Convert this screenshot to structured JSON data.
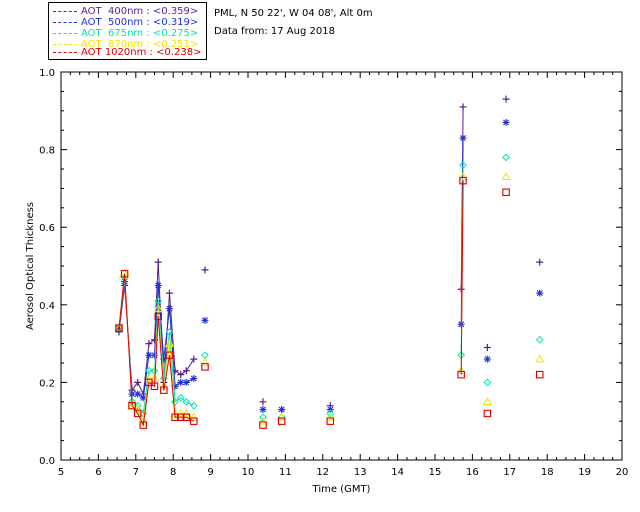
{
  "header": {
    "site": "PML, N 50 22', W 04 08', Alt 0m",
    "date": "Data from: 17 Aug 2018"
  },
  "legend": [
    {
      "label": "AOT  400nm : <0.359>",
      "color": "#5a1e8c"
    },
    {
      "label": "AOT  500nm : <0.319>",
      "color": "#1e32dc"
    },
    {
      "label": "AOT  675nm : <0.275>",
      "color": "#00e6b4"
    },
    {
      "label": "AOT  870nm : <0.251>",
      "color": "#f0e600"
    },
    {
      "label": "AOT 1020nm : <0.238>",
      "color": "#dc0000"
    }
  ],
  "chart_data": {
    "type": "line",
    "xlabel": "Time (GMT)",
    "ylabel": "Aerosol Optical Thickness",
    "xlim": [
      5,
      20
    ],
    "ylim": [
      0.0,
      1.0
    ],
    "xticks": [
      "5",
      "6",
      "7",
      "8",
      "9",
      "10",
      "11",
      "12",
      "13",
      "14",
      "15",
      "16",
      "17",
      "18",
      "19",
      "20"
    ],
    "yticks": [
      "0.0",
      "0.2",
      "0.4",
      "0.6",
      "0.8",
      "1.0"
    ],
    "series": [
      {
        "name": "AOT  400nm : <0.359>",
        "color": "#5a1e8c",
        "marker": "plus",
        "connected": [
          [
            6.55,
            0.33
          ],
          [
            6.7,
            0.45
          ],
          [
            6.9,
            0.18
          ],
          [
            7.05,
            0.2
          ],
          [
            7.2,
            0.17
          ],
          [
            7.35,
            0.3
          ],
          [
            7.5,
            0.31
          ],
          [
            7.6,
            0.51
          ],
          [
            7.75,
            0.2
          ],
          [
            7.9,
            0.43
          ],
          [
            8.05,
            0.23
          ],
          [
            8.2,
            0.22
          ],
          [
            8.35,
            0.23
          ],
          [
            8.55,
            0.26
          ]
        ],
        "isolated": [
          [
            8.85,
            0.49
          ],
          [
            10.4,
            0.15
          ],
          [
            10.9,
            0.13
          ],
          [
            12.2,
            0.14
          ],
          [
            15.7,
            0.44
          ],
          [
            15.75,
            0.91
          ],
          [
            16.4,
            0.29
          ],
          [
            16.9,
            0.93
          ],
          [
            17.8,
            0.51
          ]
        ],
        "connected_late": [
          [
            15.7,
            0.44
          ],
          [
            15.75,
            0.91
          ]
        ]
      },
      {
        "name": "AOT  500nm : <0.319>",
        "color": "#1e32dc",
        "marker": "star",
        "connected": [
          [
            6.55,
            0.34
          ],
          [
            6.7,
            0.46
          ],
          [
            6.9,
            0.17
          ],
          [
            7.05,
            0.17
          ],
          [
            7.2,
            0.16
          ],
          [
            7.35,
            0.27
          ],
          [
            7.5,
            0.27
          ],
          [
            7.6,
            0.45
          ],
          [
            7.75,
            0.26
          ],
          [
            7.9,
            0.39
          ],
          [
            8.05,
            0.19
          ],
          [
            8.2,
            0.2
          ],
          [
            8.35,
            0.2
          ],
          [
            8.55,
            0.21
          ]
        ],
        "isolated": [
          [
            8.85,
            0.36
          ],
          [
            10.4,
            0.13
          ],
          [
            10.9,
            0.13
          ],
          [
            12.2,
            0.13
          ],
          [
            15.7,
            0.35
          ],
          [
            15.75,
            0.83
          ],
          [
            16.4,
            0.26
          ],
          [
            16.9,
            0.87
          ],
          [
            17.8,
            0.43
          ]
        ],
        "connected_late": [
          [
            15.7,
            0.35
          ],
          [
            15.75,
            0.83
          ]
        ]
      },
      {
        "name": "AOT  675nm : <0.275>",
        "color": "#00e6b4",
        "marker": "diamond",
        "connected": [
          [
            6.55,
            0.34
          ],
          [
            6.7,
            0.47
          ],
          [
            6.9,
            0.15
          ],
          [
            7.05,
            0.14
          ],
          [
            7.2,
            0.12
          ],
          [
            7.35,
            0.23
          ],
          [
            7.5,
            0.23
          ],
          [
            7.6,
            0.41
          ],
          [
            7.75,
            0.21
          ],
          [
            7.9,
            0.33
          ],
          [
            8.05,
            0.15
          ],
          [
            8.2,
            0.16
          ],
          [
            8.35,
            0.15
          ],
          [
            8.55,
            0.14
          ]
        ],
        "isolated": [
          [
            8.85,
            0.27
          ],
          [
            10.4,
            0.11
          ],
          [
            10.9,
            0.11
          ],
          [
            12.2,
            0.12
          ],
          [
            15.7,
            0.27
          ],
          [
            15.75,
            0.76
          ],
          [
            16.4,
            0.2
          ],
          [
            16.9,
            0.78
          ],
          [
            17.8,
            0.31
          ]
        ],
        "connected_late": [
          [
            15.7,
            0.27
          ],
          [
            15.75,
            0.76
          ]
        ]
      },
      {
        "name": "AOT  870nm : <0.251>",
        "color": "#f0e600",
        "marker": "triangle",
        "connected": [
          [
            6.55,
            0.34
          ],
          [
            6.7,
            0.48
          ],
          [
            6.9,
            0.14
          ],
          [
            7.05,
            0.13
          ],
          [
            7.2,
            0.1
          ],
          [
            7.35,
            0.21
          ],
          [
            7.5,
            0.21
          ],
          [
            7.6,
            0.39
          ],
          [
            7.75,
            0.19
          ],
          [
            7.9,
            0.3
          ],
          [
            8.05,
            0.12
          ],
          [
            8.2,
            0.12
          ],
          [
            8.35,
            0.12
          ],
          [
            8.55,
            0.11
          ]
        ],
        "isolated": [
          [
            8.85,
            0.25
          ],
          [
            10.4,
            0.1
          ],
          [
            10.9,
            0.11
          ],
          [
            12.2,
            0.11
          ],
          [
            15.7,
            0.23
          ],
          [
            15.75,
            0.73
          ],
          [
            16.4,
            0.15
          ],
          [
            16.9,
            0.73
          ],
          [
            17.8,
            0.26
          ]
        ],
        "connected_late": [
          [
            15.7,
            0.23
          ],
          [
            15.75,
            0.73
          ]
        ]
      },
      {
        "name": "AOT 1020nm : <0.238>",
        "color": "#dc0000",
        "marker": "square",
        "connected": [
          [
            6.55,
            0.34
          ],
          [
            6.7,
            0.48
          ],
          [
            6.9,
            0.14
          ],
          [
            7.05,
            0.12
          ],
          [
            7.2,
            0.09
          ],
          [
            7.35,
            0.2
          ],
          [
            7.5,
            0.19
          ],
          [
            7.6,
            0.37
          ],
          [
            7.75,
            0.18
          ],
          [
            7.9,
            0.27
          ],
          [
            8.05,
            0.11
          ],
          [
            8.2,
            0.11
          ],
          [
            8.35,
            0.11
          ],
          [
            8.55,
            0.1
          ]
        ],
        "isolated": [
          [
            8.85,
            0.24
          ],
          [
            10.4,
            0.09
          ],
          [
            10.9,
            0.1
          ],
          [
            12.2,
            0.1
          ],
          [
            15.7,
            0.22
          ],
          [
            15.75,
            0.72
          ],
          [
            16.4,
            0.12
          ],
          [
            16.9,
            0.69
          ],
          [
            17.8,
            0.22
          ]
        ],
        "connected_late": [
          [
            15.7,
            0.22
          ],
          [
            15.75,
            0.72
          ]
        ]
      }
    ]
  }
}
